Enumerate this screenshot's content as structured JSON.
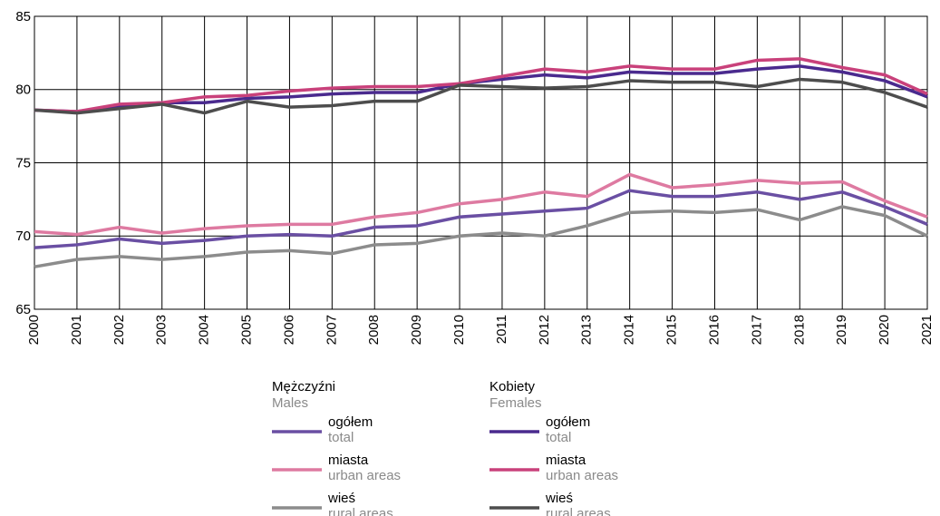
{
  "chart_data": {
    "type": "line",
    "categories": [
      "2000",
      "2001",
      "2002",
      "2003",
      "2004",
      "2005",
      "2006",
      "2007",
      "2008",
      "2009",
      "2010",
      "2011",
      "2012",
      "2013",
      "2014",
      "2015",
      "2016",
      "2017",
      "2018",
      "2019",
      "2020",
      "2021"
    ],
    "ylim": [
      65,
      85
    ],
    "yticks": [
      65,
      70,
      75,
      80,
      85
    ],
    "grid": true,
    "legend_groups": [
      {
        "title": "Mężczyźni",
        "subtitle": "Males"
      },
      {
        "title": "Kobiety",
        "subtitle": "Females"
      }
    ],
    "series": [
      {
        "name": "ogółem",
        "name_en": "total",
        "group": 0,
        "color": "#6a4fa3",
        "values": [
          69.2,
          69.4,
          69.8,
          69.5,
          69.7,
          70.0,
          70.1,
          70.0,
          70.6,
          70.7,
          71.3,
          71.5,
          71.7,
          71.9,
          73.1,
          72.7,
          72.7,
          73.0,
          72.5,
          73.0,
          72.0,
          70.8
        ]
      },
      {
        "name": "miasta",
        "name_en": "urban areas",
        "group": 0,
        "color": "#de7aa1",
        "values": [
          70.3,
          70.1,
          70.6,
          70.2,
          70.5,
          70.7,
          70.8,
          70.8,
          71.3,
          71.6,
          72.2,
          72.5,
          73.0,
          72.7,
          74.2,
          73.3,
          73.5,
          73.8,
          73.6,
          73.7,
          72.4,
          71.3
        ]
      },
      {
        "name": "wieś",
        "name_en": "rural areas",
        "group": 0,
        "color": "#8c8c8c",
        "values": [
          67.9,
          68.4,
          68.6,
          68.4,
          68.6,
          68.9,
          69.0,
          68.8,
          69.4,
          69.5,
          70.0,
          70.2,
          70.0,
          70.7,
          71.6,
          71.7,
          71.6,
          71.8,
          71.1,
          72.0,
          71.4,
          70.0
        ]
      },
      {
        "name": "ogółem",
        "name_en": "total",
        "group": 1,
        "color": "#4a2a8e",
        "values": [
          78.6,
          78.5,
          78.9,
          79.1,
          79.1,
          79.4,
          79.5,
          79.7,
          79.8,
          79.8,
          80.4,
          80.7,
          81.0,
          80.8,
          81.2,
          81.1,
          81.1,
          81.4,
          81.6,
          81.2,
          80.6,
          79.5
        ]
      },
      {
        "name": "miasta",
        "name_en": "urban areas",
        "group": 1,
        "color": "#c9417b",
        "values": [
          78.6,
          78.5,
          79.0,
          79.1,
          79.5,
          79.6,
          79.9,
          80.1,
          80.2,
          80.2,
          80.4,
          80.9,
          81.4,
          81.2,
          81.6,
          81.4,
          81.4,
          82.0,
          82.1,
          81.5,
          81.0,
          79.7
        ]
      },
      {
        "name": "wieś",
        "name_en": "rural areas",
        "group": 1,
        "color": "#4d4d4d",
        "values": [
          78.6,
          78.4,
          78.7,
          79.0,
          78.4,
          79.2,
          78.8,
          78.9,
          79.2,
          79.2,
          80.3,
          80.2,
          80.1,
          80.2,
          80.6,
          80.5,
          80.5,
          80.2,
          80.7,
          80.5,
          79.8,
          78.8
        ]
      }
    ]
  }
}
